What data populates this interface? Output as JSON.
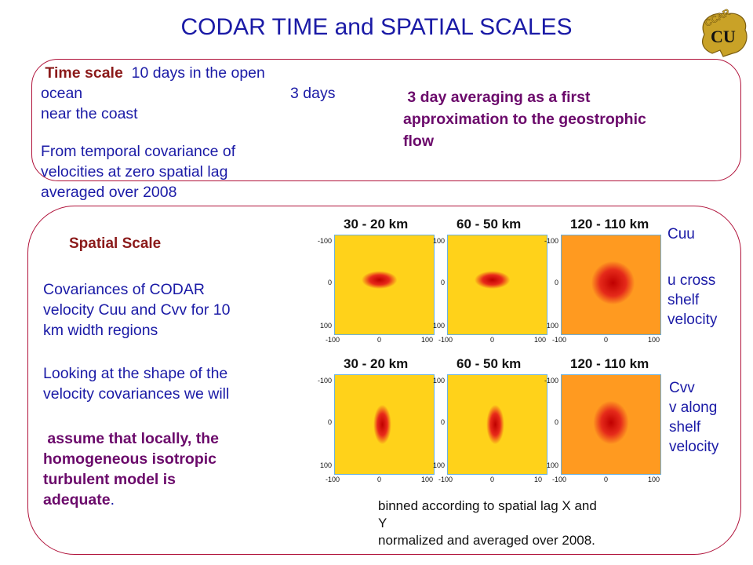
{
  "title": "CODAR TIME and SPATIAL SCALES",
  "logo": {
    "text": "CCAR",
    "monogram": "CU",
    "color": "#c9a227"
  },
  "time_scale": {
    "label": "Time scale",
    "line1_rest": "10 days in the open",
    "line2_left": "ocean",
    "line2_right": "3 days",
    "line3": "near the coast",
    "line4": "From temporal covariance of",
    "line5": "velocities at zero spatial lag",
    "line6": "averaged over 2008"
  },
  "averaging_note": {
    "line1": "3 day averaging as a first",
    "line2": "approximation to  the geostrophic",
    "line3": "flow"
  },
  "spatial_scale": {
    "label": "Spatial Scale",
    "para1": [
      "Covariances of CODAR",
      "velocity Cuu and Cvv for 10",
      "km  width  regions"
    ],
    "para2": [
      "Looking at the shape of the",
      "velocity covariances we will"
    ],
    "para3": [
      "assume that locally, the",
      "homogeneous isotropic",
      "turbulent model is"
    ],
    "para3_last": "adequate",
    "para3_end": "."
  },
  "panels": {
    "top": [
      {
        "title": "30 - 20 km",
        "ticks_left": [
          "-100",
          "0",
          "100"
        ],
        "ticks_bottom": [
          "-100",
          "0",
          "100"
        ]
      },
      {
        "title": "60 - 50 km",
        "ticks_left": [
          "100",
          "0",
          "100"
        ],
        "ticks_bottom": [
          "-100",
          "0",
          "100"
        ]
      },
      {
        "title": "120 - 110 km",
        "ticks_left": [
          "-100",
          "0",
          "100"
        ],
        "ticks_bottom": [
          "-100",
          "0",
          "100"
        ]
      }
    ],
    "bottom": [
      {
        "title": "30 - 20 km",
        "ticks_left": [
          "-100",
          "0",
          "100"
        ],
        "ticks_bottom": [
          "-100",
          "0",
          "100"
        ]
      },
      {
        "title": "60 - 50 km",
        "ticks_left": [
          "100",
          "0",
          "100"
        ],
        "ticks_bottom": [
          "-100",
          "0",
          "10"
        ]
      },
      {
        "title": "120 - 110 km",
        "ticks_left": [
          "-100",
          "0",
          "100"
        ],
        "ticks_bottom": [
          "-100",
          "0",
          "100"
        ]
      }
    ]
  },
  "cuu": {
    "label": "Cuu",
    "desc": [
      "u cross",
      "shelf",
      "velocity"
    ]
  },
  "cvv": {
    "label": "Cvv",
    "desc": [
      "v along",
      "shelf",
      "velocity"
    ]
  },
  "footnote": {
    "line1": "binned according to spatial lag X and",
    "line2": "Y",
    "line3": "normalized and averaged over 2008."
  }
}
